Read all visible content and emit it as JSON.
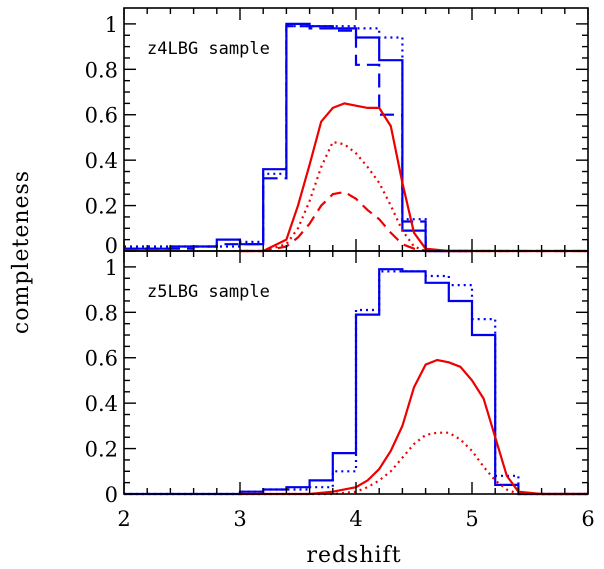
{
  "chart_data": {
    "type": "line",
    "xlabel": "redshift",
    "ylabel": "completeness",
    "xlim": [
      2,
      6
    ],
    "x_ticks": [
      "2",
      "3",
      "4",
      "5",
      "6"
    ],
    "colors": {
      "blue": "#0000ee",
      "red": "#ee0000",
      "axis": "#000000"
    },
    "panels": [
      {
        "label": "z4LBG sample",
        "ylim": [
          0,
          1.07
        ],
        "y_ticks": [
          "0",
          "0.2",
          "0.4",
          "0.6",
          "0.8",
          "1"
        ],
        "series": [
          {
            "style": "blue-solid-step",
            "bin_width": 0.2,
            "x": [
              2.0,
              2.2,
              2.4,
              2.6,
              2.8,
              3.0,
              3.2,
              3.4,
              3.6,
              3.8,
              4.0,
              4.2,
              4.4,
              4.6,
              4.8
            ],
            "values": [
              0.01,
              0.01,
              0.02,
              0.02,
              0.05,
              0.03,
              0.36,
              1.0,
              0.99,
              0.98,
              0.94,
              0.84,
              0.09,
              0.0,
              0.0
            ]
          },
          {
            "style": "blue-dashed-step",
            "bin_width": 0.2,
            "x": [
              2.0,
              2.2,
              2.4,
              2.6,
              2.8,
              3.0,
              3.2,
              3.4,
              3.6,
              3.8,
              4.0,
              4.2,
              4.4,
              4.6,
              4.8
            ],
            "values": [
              0.01,
              0.01,
              0.01,
              0.02,
              0.03,
              0.03,
              0.32,
              0.99,
              0.98,
              0.97,
              0.82,
              0.6,
              0.13,
              0.0,
              0.0
            ]
          },
          {
            "style": "blue-dotted-step",
            "bin_width": 0.2,
            "x": [
              2.0,
              2.2,
              2.4,
              2.6,
              2.8,
              3.0,
              3.2,
              3.4,
              3.6,
              3.8,
              4.0,
              4.2,
              4.4,
              4.6,
              4.8
            ],
            "values": [
              0.02,
              0.02,
              0.02,
              0.02,
              0.02,
              0.04,
              0.34,
              0.99,
              0.99,
              0.99,
              0.98,
              0.94,
              0.14,
              0.0,
              0.0
            ]
          },
          {
            "style": "red-solid",
            "x": [
              3.0,
              3.2,
              3.4,
              3.5,
              3.6,
              3.7,
              3.8,
              3.9,
              4.0,
              4.1,
              4.2,
              4.3,
              4.4,
              4.5,
              4.6,
              4.8,
              5.0,
              5.5,
              6.0
            ],
            "values": [
              0.0,
              0.0,
              0.05,
              0.2,
              0.38,
              0.57,
              0.63,
              0.65,
              0.64,
              0.63,
              0.63,
              0.55,
              0.3,
              0.08,
              0.01,
              0.0,
              0.0,
              0.0,
              0.0
            ]
          },
          {
            "style": "red-dotted",
            "x": [
              3.0,
              3.2,
              3.4,
              3.5,
              3.6,
              3.7,
              3.8,
              3.9,
              4.0,
              4.1,
              4.2,
              4.3,
              4.4,
              4.5,
              4.6,
              5.0,
              6.0
            ],
            "values": [
              0.0,
              0.0,
              0.03,
              0.1,
              0.22,
              0.37,
              0.48,
              0.47,
              0.43,
              0.37,
              0.3,
              0.2,
              0.09,
              0.02,
              0.0,
              0.0,
              0.0
            ]
          },
          {
            "style": "red-dashed",
            "x": [
              3.0,
              3.2,
              3.4,
              3.5,
              3.6,
              3.7,
              3.8,
              3.9,
              4.0,
              4.1,
              4.2,
              4.3,
              4.4,
              4.5,
              4.6,
              5.0,
              6.0
            ],
            "values": [
              0.0,
              0.0,
              0.02,
              0.06,
              0.12,
              0.2,
              0.25,
              0.26,
              0.23,
              0.18,
              0.14,
              0.08,
              0.03,
              0.01,
              0.0,
              0.0,
              0.0
            ]
          }
        ]
      },
      {
        "label": "z5LBG sample",
        "ylim": [
          0,
          1.07
        ],
        "y_ticks": [
          "0",
          "0.2",
          "0.4",
          "0.6",
          "0.8",
          "1"
        ],
        "series": [
          {
            "style": "blue-solid-step",
            "bin_width": 0.2,
            "x": [
              2.0,
              2.2,
              2.4,
              2.6,
              2.8,
              3.0,
              3.2,
              3.4,
              3.6,
              3.8,
              4.0,
              4.2,
              4.4,
              4.6,
              4.8,
              5.0,
              5.2,
              5.4,
              5.6,
              5.8
            ],
            "values": [
              0.0,
              0.0,
              0.0,
              0.0,
              0.0,
              0.01,
              0.02,
              0.03,
              0.06,
              0.18,
              0.79,
              0.99,
              0.98,
              0.93,
              0.85,
              0.7,
              0.04,
              0.0,
              0.0,
              0.0
            ]
          },
          {
            "style": "blue-dotted-step",
            "bin_width": 0.2,
            "x": [
              2.0,
              2.2,
              2.4,
              2.6,
              2.8,
              3.0,
              3.2,
              3.4,
              3.6,
              3.8,
              4.0,
              4.2,
              4.4,
              4.6,
              4.8,
              5.0,
              5.2,
              5.4,
              5.6,
              5.8
            ],
            "values": [
              0.0,
              0.0,
              0.0,
              0.0,
              0.0,
              0.01,
              0.02,
              0.02,
              0.03,
              0.1,
              0.81,
              0.98,
              0.98,
              0.96,
              0.92,
              0.77,
              0.08,
              0.0,
              0.0,
              0.0
            ]
          },
          {
            "style": "red-solid",
            "x": [
              3.0,
              3.4,
              3.6,
              3.8,
              4.0,
              4.1,
              4.2,
              4.3,
              4.4,
              4.5,
              4.6,
              4.7,
              4.8,
              4.9,
              5.0,
              5.1,
              5.2,
              5.3,
              5.4,
              5.6,
              6.0
            ],
            "values": [
              0.0,
              0.0,
              0.0,
              0.01,
              0.03,
              0.06,
              0.11,
              0.19,
              0.3,
              0.47,
              0.57,
              0.59,
              0.58,
              0.56,
              0.5,
              0.42,
              0.25,
              0.08,
              0.01,
              0.0,
              0.0
            ]
          },
          {
            "style": "red-dotted",
            "x": [
              3.0,
              3.6,
              3.8,
              4.0,
              4.1,
              4.2,
              4.3,
              4.4,
              4.5,
              4.6,
              4.7,
              4.8,
              4.9,
              5.0,
              5.1,
              5.2,
              5.3,
              5.4,
              6.0
            ],
            "values": [
              0.0,
              0.0,
              0.0,
              0.01,
              0.03,
              0.06,
              0.1,
              0.16,
              0.22,
              0.26,
              0.27,
              0.27,
              0.24,
              0.19,
              0.12,
              0.06,
              0.02,
              0.0,
              0.0
            ]
          }
        ]
      }
    ]
  }
}
